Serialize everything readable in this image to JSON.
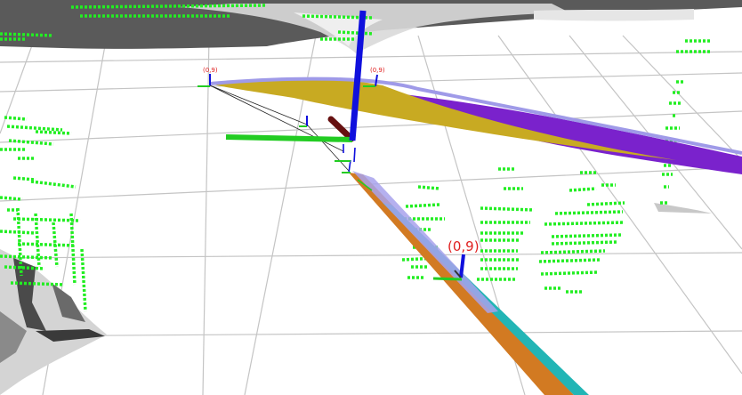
{
  "viewport": {
    "name": "3d-visualization-viewport",
    "background": "#ffffff",
    "grid_color": "#bdbdbd"
  },
  "labels": {
    "waypoint_main": "(0,9)",
    "waypoint_left": "(0,9)",
    "waypoint_right": "(0,9)",
    "color": "#e02020"
  },
  "colors": {
    "point_cloud": "#22ee22",
    "axis_z": "#1010dd",
    "axis_y": "#22cc22",
    "axis_x": "#661010",
    "path_purple": "#7a22cc",
    "path_gold": "#c8aa22",
    "path_lavender": "#9f9ae8",
    "path_orange": "#d27a22",
    "path_teal": "#22b5b5",
    "map_dark": "#555555",
    "map_light": "#d8d8d8"
  },
  "icons": {
    "axis_marker": "axis-marker-icon",
    "point_marker": "point-marker-icon"
  }
}
